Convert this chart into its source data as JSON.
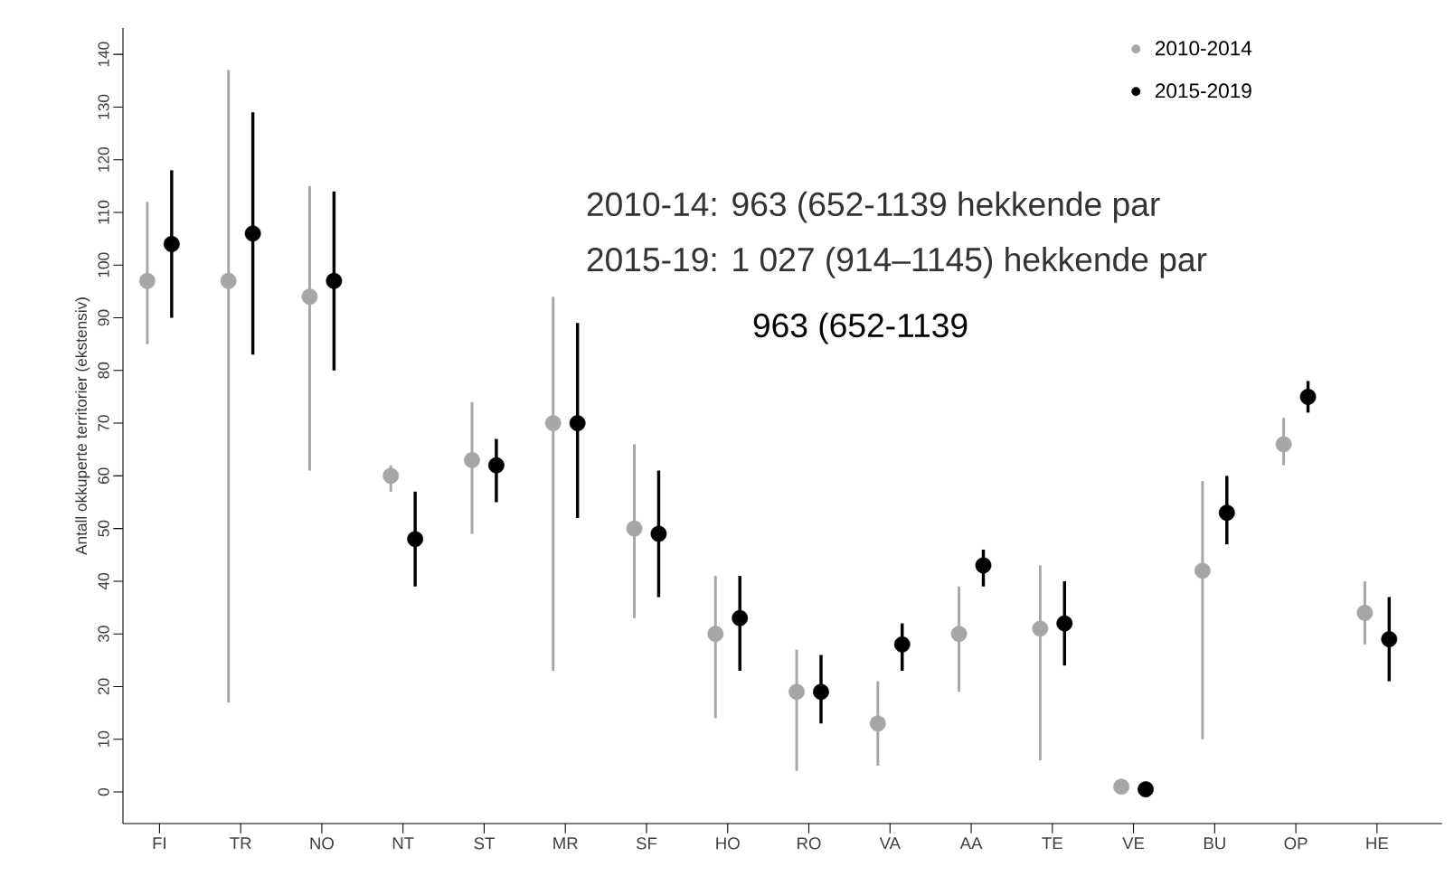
{
  "chart_data": {
    "type": "scatter",
    "ylabel": "Antall okkuperte territorier (ekstensiv)",
    "categories": [
      "FI",
      "TR",
      "NO",
      "NT",
      "ST",
      "MR",
      "SF",
      "HO",
      "RO",
      "VA",
      "AA",
      "TE",
      "VE",
      "BU",
      "OP",
      "HE"
    ],
    "series": [
      {
        "name": "2010-2014",
        "color": "#a6a6a6",
        "values": [
          97,
          97,
          94,
          60,
          63,
          70,
          50,
          30,
          19,
          13,
          30,
          31,
          1,
          42,
          66,
          34
        ],
        "errors": [
          [
            85,
            112
          ],
          [
            17,
            137
          ],
          [
            61,
            115
          ],
          [
            57,
            62
          ],
          [
            49,
            74
          ],
          [
            23,
            94
          ],
          [
            33,
            66
          ],
          [
            14,
            41
          ],
          [
            4,
            27
          ],
          [
            5,
            21
          ],
          [
            19,
            39
          ],
          [
            6,
            43
          ],
          [
            null,
            null
          ],
          [
            10,
            59
          ],
          [
            62,
            71
          ],
          [
            28,
            40
          ]
        ]
      },
      {
        "name": "2015-2019",
        "color": "#000000",
        "values": [
          104,
          106,
          97,
          48,
          62,
          70,
          49,
          33,
          19,
          28,
          43,
          32,
          0.5,
          53,
          75,
          29
        ],
        "errors": [
          [
            90,
            118
          ],
          [
            83,
            129
          ],
          [
            80,
            114
          ],
          [
            39,
            57
          ],
          [
            55,
            67
          ],
          [
            52,
            89
          ],
          [
            37,
            61
          ],
          [
            23,
            41
          ],
          [
            13,
            26
          ],
          [
            23,
            32
          ],
          [
            39,
            46
          ],
          [
            24,
            40
          ],
          [
            null,
            null
          ],
          [
            47,
            60
          ],
          [
            72,
            78
          ],
          [
            21,
            37
          ]
        ]
      }
    ],
    "ylim": [
      -6,
      145
    ],
    "yticks": [
      0,
      10,
      20,
      30,
      40,
      50,
      60,
      70,
      80,
      90,
      100,
      110,
      120,
      130,
      140
    ],
    "legend": "top right",
    "marker": "circle",
    "annotations": [
      "2010-14: 963 (652-1139 hekkende par",
      "2015-19: 1 027 (914–1145) hekkende par",
      "963 (652-1139"
    ]
  }
}
